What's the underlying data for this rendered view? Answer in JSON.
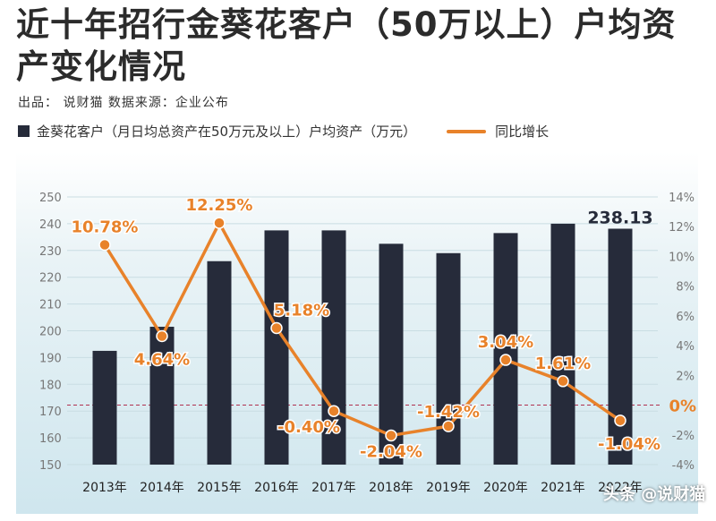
{
  "header": {
    "title": "近十年招行金葵花客户（50万以上）户均资产变化情况",
    "meta": "出品： 说财猫   数据来源：企业公布"
  },
  "legend": {
    "bar_label": "金葵花客户（月日均总资产在50万元及以上）户均资产（万元）",
    "line_label": "同比增长"
  },
  "watermark": "头条 @说财猫",
  "colors": {
    "bar": "#262b3a",
    "line": "#e8822a",
    "label": "#e8822a",
    "zero_line": "#b03050"
  },
  "chart_data": {
    "type": "bar",
    "categories": [
      "2013年",
      "2014年",
      "2015年",
      "2016年",
      "2017年",
      "2018年",
      "2019年",
      "2020年",
      "2021年",
      "2022年"
    ],
    "series": [
      {
        "name": "金葵花客户（月日均总资产在50万元及以上）户均资产（万元）",
        "type": "bar",
        "axis": "left",
        "values": [
          192.5,
          201.5,
          226,
          237.5,
          237.5,
          232.5,
          229,
          236.5,
          240,
          238.13
        ]
      },
      {
        "name": "同比增长",
        "type": "line",
        "axis": "right",
        "values": [
          10.78,
          4.64,
          12.25,
          5.18,
          -0.4,
          -2.04,
          -1.42,
          3.04,
          1.61,
          -1.04
        ],
        "labels": [
          "10.78%",
          "4.64%",
          "12.25%",
          "5.18%",
          "-0.40%",
          "-2.04%",
          "-1.42%",
          "3.04%",
          "1.61%",
          "-1.04%"
        ]
      }
    ],
    "bar_value_label": "238.13",
    "y_left": {
      "ylim": [
        150,
        250
      ],
      "ticks": [
        "150",
        "160",
        "170",
        "180",
        "190",
        "200",
        "210",
        "220",
        "230",
        "240",
        "250"
      ]
    },
    "y_right": {
      "ylim": [
        -4,
        14
      ],
      "ticks": [
        "-4%",
        "-2%",
        "0%",
        "2%",
        "4%",
        "6%",
        "8%",
        "10%",
        "12%",
        "14%"
      ]
    },
    "grid": true
  }
}
